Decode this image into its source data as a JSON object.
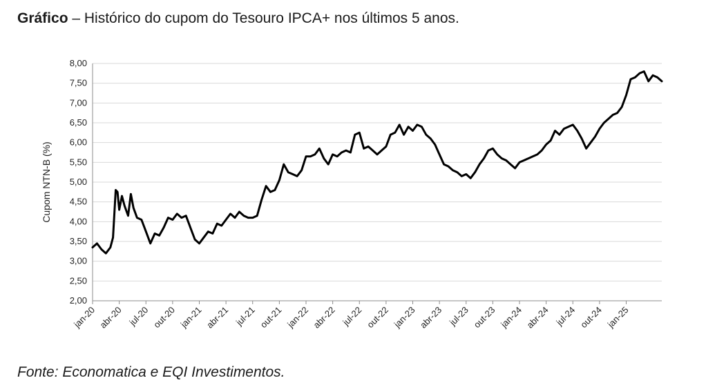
{
  "caption": {
    "bold_prefix": "Gráfico",
    "text": " – Histórico do cupom do Tesouro IPCA+ nos últimos 5 anos."
  },
  "source": "Fonte: Economatica e EQI Investimentos.",
  "chart_data": {
    "type": "line",
    "title": "Histórico do cupom do Tesouro IPCA+ nos últimos 5 anos",
    "xlabel": "",
    "ylabel": "Cupom NTN-B (%)",
    "ylim": [
      2.0,
      8.0
    ],
    "xlim": [
      0,
      64
    ],
    "grid": true,
    "legend": "none",
    "line_color": "#000000",
    "y_ticks": [
      2.0,
      2.5,
      3.0,
      3.5,
      4.0,
      4.5,
      5.0,
      5.5,
      6.0,
      6.5,
      7.0,
      7.5,
      8.0
    ],
    "y_tick_labels": [
      "2,00",
      "2,50",
      "3,00",
      "3,50",
      "4,00",
      "4,50",
      "5,00",
      "5,50",
      "6,00",
      "6,50",
      "7,00",
      "7,50",
      "8,00"
    ],
    "x_tick_labels": [
      "jan-20",
      "abr-20",
      "jul-20",
      "out-20",
      "jan-21",
      "abr-21",
      "jul-21",
      "out-21",
      "jan-22",
      "abr-22",
      "jul-22",
      "out-22",
      "jan-23",
      "abr-23",
      "jul-23",
      "out-23",
      "jan-24",
      "abr-24",
      "jul-24",
      "out-24",
      "jan-25"
    ],
    "x_tick_months": [
      0,
      3,
      6,
      9,
      12,
      15,
      18,
      21,
      24,
      27,
      30,
      33,
      36,
      39,
      42,
      45,
      48,
      51,
      54,
      57,
      60
    ],
    "series": [
      {
        "name": "Cupom NTN-B (%)",
        "x": [
          0,
          0.5,
          1,
          1.5,
          2,
          2.3,
          2.6,
          2.8,
          3.0,
          3.3,
          3.6,
          4.0,
          4.3,
          4.6,
          5.0,
          5.5,
          6.0,
          6.5,
          7.0,
          7.5,
          8.0,
          8.5,
          9.0,
          9.5,
          10.0,
          10.5,
          11.0,
          11.5,
          12.0,
          12.5,
          13.0,
          13.5,
          14.0,
          14.5,
          15.0,
          15.5,
          16.0,
          16.5,
          17.0,
          17.5,
          18.0,
          18.5,
          19.0,
          19.5,
          20.0,
          20.5,
          21.0,
          21.5,
          22.0,
          22.5,
          23.0,
          23.5,
          24.0,
          24.5,
          25.0,
          25.5,
          26.0,
          26.5,
          27.0,
          27.5,
          28.0,
          28.5,
          29.0,
          29.5,
          30.0,
          30.5,
          31.0,
          31.5,
          32.0,
          32.5,
          33.0,
          33.5,
          34.0,
          34.5,
          35.0,
          35.5,
          36.0,
          36.5,
          37.0,
          37.5,
          38.0,
          38.5,
          39.0,
          39.5,
          40.0,
          40.5,
          41.0,
          41.5,
          42.0,
          42.5,
          43.0,
          43.5,
          44.0,
          44.5,
          45.0,
          45.5,
          46.0,
          46.5,
          47.0,
          47.5,
          48.0,
          48.5,
          49.0,
          49.5,
          50.0,
          50.5,
          51.0,
          51.5,
          52.0,
          52.5,
          53.0,
          53.5,
          54.0,
          54.5,
          55.0,
          55.5,
          56.0,
          56.5,
          57.0,
          57.5,
          58.0,
          58.5,
          59.0,
          59.5,
          60.0,
          60.5,
          61.0,
          61.5,
          62.0,
          62.5,
          63.0,
          63.5,
          64.0
        ],
        "values": [
          3.35,
          3.45,
          3.3,
          3.2,
          3.35,
          3.6,
          4.8,
          4.75,
          4.3,
          4.65,
          4.4,
          4.15,
          4.7,
          4.35,
          4.1,
          4.05,
          3.75,
          3.45,
          3.7,
          3.65,
          3.85,
          4.1,
          4.05,
          4.2,
          4.1,
          4.15,
          3.85,
          3.55,
          3.45,
          3.6,
          3.75,
          3.7,
          3.95,
          3.9,
          4.05,
          4.2,
          4.1,
          4.25,
          4.15,
          4.1,
          4.1,
          4.15,
          4.55,
          4.9,
          4.75,
          4.8,
          5.05,
          5.45,
          5.25,
          5.2,
          5.15,
          5.3,
          5.65,
          5.65,
          5.7,
          5.85,
          5.6,
          5.45,
          5.7,
          5.65,
          5.75,
          5.8,
          5.75,
          6.2,
          6.25,
          5.85,
          5.9,
          5.8,
          5.7,
          5.8,
          5.9,
          6.2,
          6.25,
          6.45,
          6.2,
          6.4,
          6.3,
          6.45,
          6.4,
          6.2,
          6.1,
          5.95,
          5.7,
          5.45,
          5.4,
          5.3,
          5.25,
          5.15,
          5.2,
          5.1,
          5.25,
          5.45,
          5.6,
          5.8,
          5.85,
          5.7,
          5.6,
          5.55,
          5.45,
          5.35,
          5.5,
          5.55,
          5.6,
          5.65,
          5.7,
          5.8,
          5.95,
          6.05,
          6.3,
          6.2,
          6.35,
          6.4,
          6.45,
          6.3,
          6.1,
          5.85,
          6.0,
          6.15,
          6.35,
          6.5,
          6.6,
          6.7,
          6.75,
          6.9,
          7.2,
          7.6,
          7.65,
          7.75,
          7.8,
          7.55,
          7.7,
          7.65,
          7.55
        ]
      }
    ]
  }
}
